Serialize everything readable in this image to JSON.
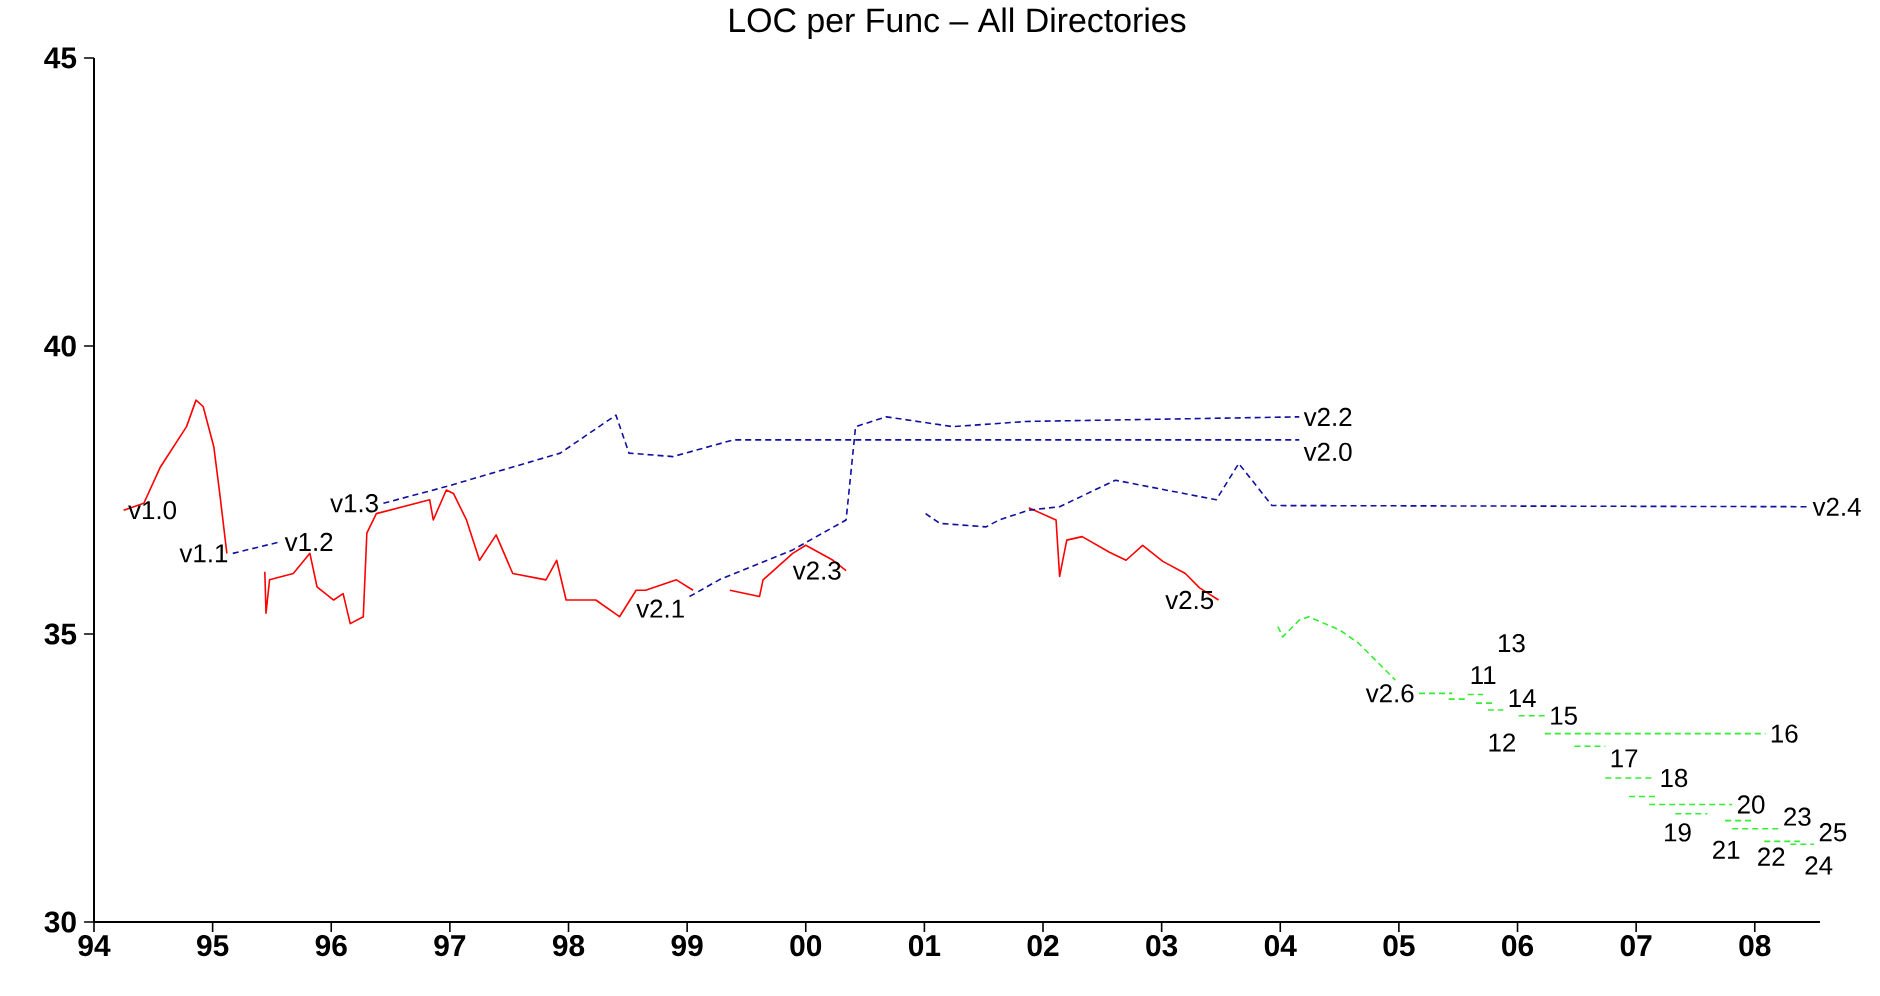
{
  "chart_data": {
    "type": "line",
    "title": "LOC per Func – All Directories",
    "xlim": [
      1994,
      2008.55
    ],
    "ylim": [
      30,
      45
    ],
    "xticks": [
      {
        "value": 1994,
        "label": "94"
      },
      {
        "value": 1995,
        "label": "95"
      },
      {
        "value": 1996,
        "label": "96"
      },
      {
        "value": 1997,
        "label": "97"
      },
      {
        "value": 1998,
        "label": "98"
      },
      {
        "value": 1999,
        "label": "99"
      },
      {
        "value": 2000,
        "label": "00"
      },
      {
        "value": 2001,
        "label": "01"
      },
      {
        "value": 2002,
        "label": "02"
      },
      {
        "value": 2003,
        "label": "03"
      },
      {
        "value": 2004,
        "label": "04"
      },
      {
        "value": 2005,
        "label": "05"
      },
      {
        "value": 2006,
        "label": "06"
      },
      {
        "value": 2007,
        "label": "07"
      },
      {
        "value": 2008,
        "label": "08"
      }
    ],
    "yticks": [
      30,
      35,
      40,
      45
    ],
    "series": [
      {
        "color": "#ff0000",
        "line_style": "solid",
        "x": [
          1994.25,
          1994.42,
          1994.56,
          1994.78,
          1994.86,
          1994.92,
          1995.01,
          1995.06,
          1995.12
        ],
        "values": [
          37.15,
          37.27,
          37.9,
          38.6,
          39.06,
          38.95,
          38.25,
          37.44,
          36.4
        ]
      },
      {
        "color": "#ff0000",
        "line_style": "solid",
        "x": [
          1995.44,
          1995.45,
          1995.48,
          1995.68,
          1995.82,
          1995.88,
          1996.02,
          1996.1,
          1996.16,
          1996.27,
          1996.3,
          1996.38,
          1996.83,
          1996.86,
          1996.97,
          1997.03,
          1997.14,
          1997.25,
          1997.39,
          1997.53,
          1997.81,
          1997.9,
          1997.98,
          1998.23,
          1998.43,
          1998.57,
          1998.65,
          1998.91,
          1999.05
        ],
        "values": [
          36.08,
          35.36,
          35.94,
          36.05,
          36.4,
          35.82,
          35.59,
          35.7,
          35.18,
          35.3,
          36.75,
          37.09,
          37.33,
          36.98,
          37.5,
          37.44,
          36.98,
          36.28,
          36.72,
          36.05,
          35.94,
          36.28,
          35.59,
          35.59,
          35.3,
          35.76,
          35.76,
          35.94,
          35.76
        ]
      },
      {
        "color": "#ff0000",
        "line_style": "solid",
        "x": [
          1999.36,
          1999.61,
          1999.64,
          1999.89,
          2000.0,
          2000.23,
          2000.34
        ],
        "values": [
          35.76,
          35.65,
          35.94,
          36.4,
          36.54,
          36.28,
          36.1
        ]
      },
      {
        "color": "#ff0000",
        "line_style": "solid",
        "x": [
          2001.88,
          2002.11,
          2002.14,
          2002.2,
          2002.33,
          2002.56,
          2002.7,
          2002.84,
          2003.01,
          2003.2,
          2003.32,
          2003.48
        ],
        "values": [
          37.19,
          36.98,
          36.0,
          36.63,
          36.69,
          36.42,
          36.28,
          36.54,
          36.26,
          36.05,
          35.8,
          35.59
        ]
      },
      {
        "color": "#1010a0",
        "line_style": "dashed",
        "x": [
          1995.17,
          1995.57
        ],
        "values": [
          36.4,
          36.6
        ]
      },
      {
        "color": "#1010a0",
        "line_style": "dashed",
        "x": [
          1996.44,
          1996.97,
          1997.93,
          1998.4,
          1998.51,
          1998.88,
          1999.39,
          2004.16
        ],
        "values": [
          37.27,
          37.56,
          38.14,
          38.8,
          38.14,
          38.08,
          38.37,
          38.37
        ]
      },
      {
        "color": "#1010a0",
        "line_style": "dashed",
        "x": [
          1999.02,
          1999.27,
          1999.89,
          2000.34,
          2000.42,
          2000.68,
          2001.24,
          2001.86,
          2004.16
        ],
        "values": [
          35.65,
          35.94,
          36.46,
          36.98,
          38.6,
          38.77,
          38.6,
          38.69,
          38.77
        ]
      },
      {
        "color": "#1010a0",
        "line_style": "dashed",
        "x": [
          2001.01,
          2001.13,
          2001.52,
          2001.63,
          2001.88,
          2002.14,
          2002.61,
          2003.46,
          2003.65,
          2003.93,
          2008.45
        ],
        "values": [
          37.09,
          36.92,
          36.86,
          36.98,
          37.15,
          37.21,
          37.67,
          37.33,
          37.96,
          37.23,
          37.21
        ]
      },
      {
        "color": "#33ee33",
        "line_style": "dashed",
        "x": [
          2003.98,
          2004.02,
          2004.16,
          2004.24,
          2004.5,
          2004.66,
          2004.97
        ],
        "values": [
          35.13,
          34.95,
          35.24,
          35.3,
          35.07,
          34.84,
          34.2
        ]
      },
      {
        "color": "#33ee33",
        "line_style": "dashed",
        "x": [
          2005.17,
          2005.45
        ],
        "values": [
          33.97,
          33.97
        ]
      },
      {
        "color": "#33ee33",
        "line_style": "dashed",
        "x": [
          2005.42,
          2005.56
        ],
        "values": [
          33.87,
          33.87
        ]
      },
      {
        "color": "#33ee33",
        "line_style": "dashed",
        "x": [
          2005.58,
          2005.71
        ],
        "values": [
          33.95,
          33.95
        ]
      },
      {
        "color": "#33ee33",
        "line_style": "dashed",
        "x": [
          2005.65,
          2005.79
        ],
        "values": [
          33.8,
          33.8
        ]
      },
      {
        "color": "#33ee33",
        "line_style": "dashed",
        "x": [
          2005.75,
          2005.88
        ],
        "values": [
          33.68,
          33.68
        ]
      },
      {
        "color": "#33ee33",
        "line_style": "dashed",
        "x": [
          2006.01,
          2006.23
        ],
        "values": [
          33.58,
          33.58
        ]
      },
      {
        "color": "#33ee33",
        "line_style": "dashed",
        "x": [
          2006.23,
          2008.09
        ],
        "values": [
          33.27,
          33.27
        ]
      },
      {
        "color": "#33ee33",
        "line_style": "dashed",
        "x": [
          2006.48,
          2006.74
        ],
        "values": [
          33.05,
          33.05
        ]
      },
      {
        "color": "#33ee33",
        "line_style": "dashed",
        "x": [
          2006.74,
          2007.16
        ],
        "values": [
          32.5,
          32.5
        ]
      },
      {
        "color": "#33ee33",
        "line_style": "dashed",
        "x": [
          2006.94,
          2007.19
        ],
        "values": [
          32.18,
          32.18
        ]
      },
      {
        "color": "#33ee33",
        "line_style": "dashed",
        "x": [
          2007.11,
          2007.81
        ],
        "values": [
          32.04,
          32.04
        ]
      },
      {
        "color": "#33ee33",
        "line_style": "dashed",
        "x": [
          2007.33,
          2007.6
        ],
        "values": [
          31.88,
          31.88
        ]
      },
      {
        "color": "#33ee33",
        "line_style": "dashed",
        "x": [
          2007.75,
          2007.98
        ],
        "values": [
          31.76,
          31.76
        ]
      },
      {
        "color": "#33ee33",
        "line_style": "dashed",
        "x": [
          2007.81,
          2008.2
        ],
        "values": [
          31.62,
          31.62
        ]
      },
      {
        "color": "#33ee33",
        "line_style": "dashed",
        "x": [
          2008.08,
          2008.38
        ],
        "values": [
          31.4,
          31.4
        ]
      },
      {
        "color": "#33ee33",
        "line_style": "dashed",
        "x": [
          2008.3,
          2008.5
        ],
        "values": [
          31.35,
          31.35
        ]
      }
    ],
    "annotations": [
      {
        "text": "v1.0",
        "x": 1994.25,
        "y": 37.15
      },
      {
        "text": "v1.1",
        "x": 1995.17,
        "y": 36.4
      },
      {
        "text": "v1.2",
        "x": 1995.57,
        "y": 36.6
      },
      {
        "text": "v1.3",
        "x": 1996.44,
        "y": 37.27
      },
      {
        "text": "v2.1",
        "x": 1999.02,
        "y": 35.65
      },
      {
        "text": "v2.3",
        "x": 2000.34,
        "y": 36.1
      },
      {
        "text": "v2.2",
        "x": 2004.16,
        "y": 38.77
      },
      {
        "text": "v2.0",
        "x": 2004.16,
        "y": 38.37
      },
      {
        "text": "v2.4",
        "x": 2008.45,
        "y": 37.21
      },
      {
        "text": "v2.5",
        "x": 2003.48,
        "y": 35.59
      },
      {
        "text": "v2.6",
        "x": 2005.17,
        "y": 33.97
      },
      {
        "text": "11",
        "x": 2005.56,
        "y": 33.87
      },
      {
        "text": "12",
        "x": 2005.71,
        "y": 33.95
      },
      {
        "text": "13",
        "x": 2005.79,
        "y": 33.8
      },
      {
        "text": "14",
        "x": 2005.88,
        "y": 33.68
      },
      {
        "text": "15",
        "x": 2006.23,
        "y": 33.58
      },
      {
        "text": "16",
        "x": 2008.09,
        "y": 33.27
      },
      {
        "text": "17",
        "x": 2006.74,
        "y": 33.05
      },
      {
        "text": "18",
        "x": 2007.16,
        "y": 32.5
      },
      {
        "text": "19",
        "x": 2007.19,
        "y": 32.18
      },
      {
        "text": "20",
        "x": 2007.81,
        "y": 32.04
      },
      {
        "text": "21",
        "x": 2007.6,
        "y": 31.88
      },
      {
        "text": "22",
        "x": 2007.98,
        "y": 31.76
      },
      {
        "text": "23",
        "x": 2008.2,
        "y": 31.62
      },
      {
        "text": "24",
        "x": 2008.38,
        "y": 31.4
      },
      {
        "text": "25",
        "x": 2008.5,
        "y": 31.35
      }
    ]
  }
}
